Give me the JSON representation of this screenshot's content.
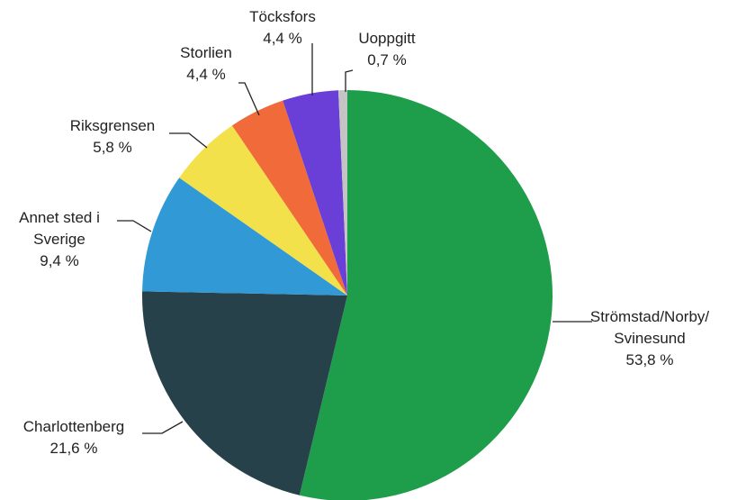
{
  "chart_data": {
    "type": "pie",
    "title": "",
    "start_angle_deg": 0,
    "direction": "clockwise",
    "slices": [
      {
        "lines": [
          "Strömstad/Norby/",
          "Svinesund"
        ],
        "value_label": "53,8 %",
        "value": 53.8,
        "color": "#1e9e4a"
      },
      {
        "lines": [
          "Charlottenberg"
        ],
        "value_label": "21,6 %",
        "value": 21.6,
        "color": "#27414a"
      },
      {
        "lines": [
          "Annet sted i",
          "Sverige"
        ],
        "value_label": "9,4 %",
        "value": 9.4,
        "color": "#3199d6"
      },
      {
        "lines": [
          "Riksgrensen"
        ],
        "value_label": "5,8 %",
        "value": 5.8,
        "color": "#f2e14a"
      },
      {
        "lines": [
          "Storlien"
        ],
        "value_label": "4,4 %",
        "value": 4.4,
        "color": "#f06a3a"
      },
      {
        "lines": [
          "Töcksfors"
        ],
        "value_label": "4,4 %",
        "value": 4.4,
        "color": "#6a3fd8"
      },
      {
        "lines": [
          "Uoppgitt"
        ],
        "value_label": "0,7 %",
        "value": 0.7,
        "color": "#c4c4c4"
      }
    ]
  }
}
